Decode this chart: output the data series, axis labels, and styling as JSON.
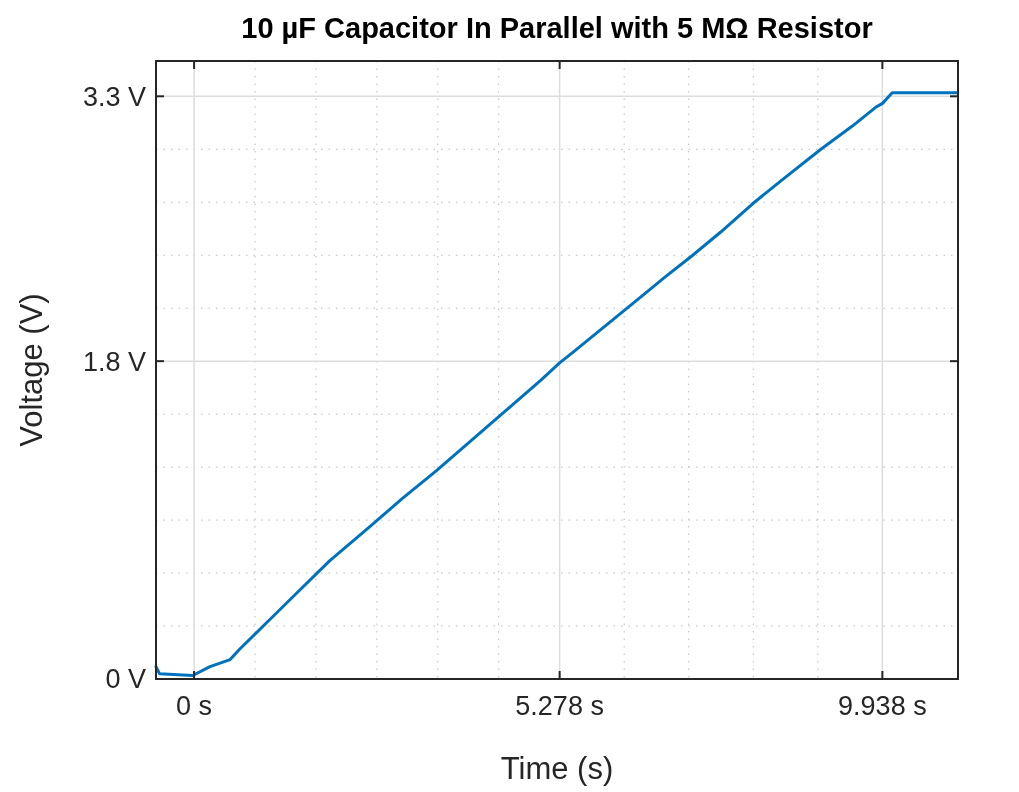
{
  "chart_data": {
    "type": "line",
    "title": "10 µF Capacitor In Parallel with 5 MΩ Resistor",
    "xlabel": "Time (s)",
    "ylabel": "Voltage (V)",
    "xlim": [
      -0.55,
      11.03
    ],
    "ylim": [
      0,
      3.5
    ],
    "xticks": [
      {
        "value": 0,
        "label": "0 s"
      },
      {
        "value": 5.278,
        "label": "5.278 s"
      },
      {
        "value": 9.938,
        "label": "9.938 s"
      }
    ],
    "yticks": [
      {
        "value": 0,
        "label": "0 V"
      },
      {
        "value": 1.8,
        "label": "1.8 V"
      },
      {
        "value": 3.3,
        "label": "3.3 V"
      }
    ],
    "grid": true,
    "marker": "none",
    "line_style": "solid",
    "series": [
      {
        "color": "#0072bd",
        "x": [
          -0.55,
          -0.5,
          -0.02,
          0.23,
          0.52,
          0.66,
          1.05,
          1.49,
          1.96,
          2.5,
          3,
          3.5,
          4,
          4.5,
          5,
          5.278,
          5.5,
          6,
          6.5,
          6.78,
          7.2,
          7.6,
          8.06,
          8.5,
          9.05,
          9.5,
          9.85,
          9.94,
          10.08,
          10.5,
          11.02
        ],
        "values": [
          0.07,
          0.03,
          0.02,
          0.07,
          0.11,
          0.17,
          0.32,
          0.49,
          0.67,
          0.85,
          1.02,
          1.18,
          1.35,
          1.52,
          1.69,
          1.79,
          1.86,
          2.02,
          2.18,
          2.27,
          2.4,
          2.53,
          2.69,
          2.83,
          3.0,
          3.13,
          3.24,
          3.26,
          3.32,
          3.32,
          3.32
        ]
      }
    ]
  }
}
